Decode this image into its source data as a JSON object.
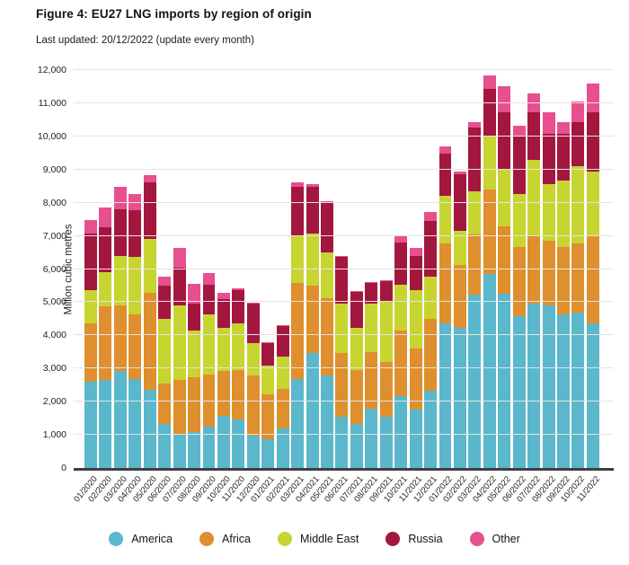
{
  "header": {
    "title": "Figure 4: EU27 LNG imports by region of origin",
    "subtitle": "Last updated: 20/12/2022 (update every month)"
  },
  "chart_data": {
    "type": "bar",
    "stacked": true,
    "title": "Figure 4: EU27 LNG imports by region of origin",
    "ylabel": "Million cubic metres",
    "ylim": [
      0,
      12000
    ],
    "ytick_step": 1000,
    "grid": "horizontal",
    "legend_position": "bottom",
    "categories": [
      "01/2020",
      "02/2020",
      "03/2020",
      "04/2020",
      "05/2020",
      "06/2020",
      "07/2020",
      "08/2020",
      "09/2020",
      "10/2020",
      "11/2020",
      "12/2020",
      "01/2021",
      "02/2021",
      "03/2021",
      "04/2021",
      "05/2021",
      "06/2021",
      "07/2021",
      "08/2021",
      "09/2021",
      "10/2021",
      "11/2021",
      "12/2021",
      "01/2022",
      "02/2022",
      "03/2022",
      "04/2022",
      "05/2022",
      "06/2022",
      "07/2022",
      "08/2022",
      "09/2022",
      "10/2022",
      "11/2022"
    ],
    "series": [
      {
        "name": "America",
        "color": "#5ab7cc",
        "values": [
          2600,
          2645,
          2915,
          2690,
          2345,
          1330,
          1040,
          1075,
          1240,
          1575,
          1465,
          985,
          880,
          1195,
          2690,
          3455,
          2780,
          1555,
          1330,
          1785,
          1555,
          2170,
          1760,
          2325,
          4360,
          4225,
          5220,
          5855,
          5265,
          4590,
          4950,
          4905,
          4635,
          4680,
          4360
        ]
      },
      {
        "name": "Africa",
        "color": "#df8f2d",
        "values": [
          1765,
          2220,
          1995,
          1950,
          2925,
          1225,
          1605,
          1660,
          1585,
          1340,
          1495,
          1795,
          1355,
          1195,
          2895,
          2040,
          2350,
          1900,
          1630,
          1715,
          1630,
          1965,
          1830,
          2175,
          2400,
          1900,
          1810,
          2535,
          2035,
          2080,
          2035,
          1945,
          2035,
          2080,
          2625
        ]
      },
      {
        "name": "Middle East",
        "color": "#c8d430",
        "values": [
          995,
          1040,
          1495,
          1720,
          1630,
          1945,
          2265,
          1420,
          1810,
          1310,
          1400,
          995,
          860,
          975,
          1400,
          1580,
          1360,
          1495,
          1265,
          1450,
          1855,
          1405,
          1770,
          1265,
          1450,
          1015,
          1315,
          1630,
          1720,
          1585,
          2310,
          1720,
          1990,
          2350,
          1945
        ]
      },
      {
        "name": "Russia",
        "color": "#a3173e",
        "values": [
          1710,
          1360,
          1405,
          1405,
          1720,
          1000,
          1130,
          795,
          905,
          860,
          995,
          1175,
          680,
          905,
          1495,
          1405,
          1535,
          1405,
          1085,
          635,
          590,
          1265,
          1040,
          1675,
          1265,
          1730,
          1930,
          1400,
          1720,
          1765,
          1445,
          1495,
          1405,
          1315,
          1810
        ]
      },
      {
        "name": "Other",
        "color": "#e84f8e",
        "values": [
          420,
          585,
          680,
          495,
          200,
          270,
          590,
          605,
          335,
          200,
          75,
          30,
          20,
          25,
          135,
          90,
          30,
          30,
          30,
          30,
          30,
          225,
          225,
          270,
          225,
          60,
          150,
          410,
          770,
          315,
          545,
          675,
          360,
          635,
          860
        ]
      }
    ]
  }
}
